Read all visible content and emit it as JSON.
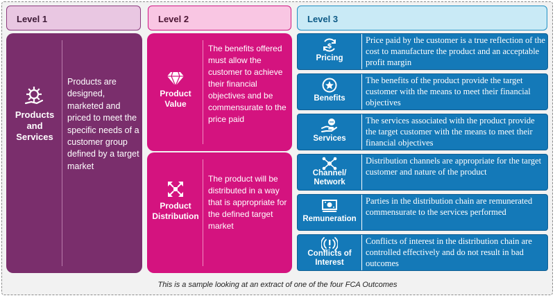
{
  "headers": {
    "level1": "Level 1",
    "level2": "Level 2",
    "level3": "Level 3"
  },
  "level1": {
    "label": "Products and Services",
    "icon": "gear-hand-icon",
    "text": "Products are designed, marketed and priced to meet the specific needs of a customer group defined by a target market"
  },
  "level2": [
    {
      "label": "Product Value",
      "icon": "diamond-icon",
      "text": "The benefits offered must allow the customer to achieve their financial objectives and be commensurate to the price paid"
    },
    {
      "label": "Product Distribution",
      "icon": "distribution-arrows-icon",
      "text": "The product will be distributed in a way that is appropriate for the defined target market"
    }
  ],
  "level3": [
    {
      "label": "Pricing",
      "icon": "dollar-cycle-icon",
      "text": "Price paid by the customer is a true reflection of the cost to manufacture the product and an acceptable profit margin"
    },
    {
      "label": "Benefits",
      "icon": "star-badge-icon",
      "text": "The benefits of the product provide the target customer with the means to meet their financial objectives"
    },
    {
      "label": "Services",
      "icon": "hand-chat-icon",
      "text": "The services associated with the product provide the target customer with the means to meet their financial objectives"
    },
    {
      "label": "Channel/ Network",
      "icon": "network-icon",
      "text": "Distribution channels are appropriate for the target customer and nature of the product"
    },
    {
      "label": "Remuneration",
      "icon": "banknote-icon",
      "text": "Parties in the distribution chain are remunerated commensurate to the services performed"
    },
    {
      "label": "Conflicts of Interest",
      "icon": "signal-alert-icon",
      "text": "Conflicts of interest in the distribution chain are controlled effectively and do not result in bad outcomes"
    }
  ],
  "caption": "This is a sample looking at an extract of one of the four FCA Outcomes",
  "colors": {
    "level1": "#7a2e6c",
    "level2": "#d4137f",
    "level3": "#1479b8"
  }
}
